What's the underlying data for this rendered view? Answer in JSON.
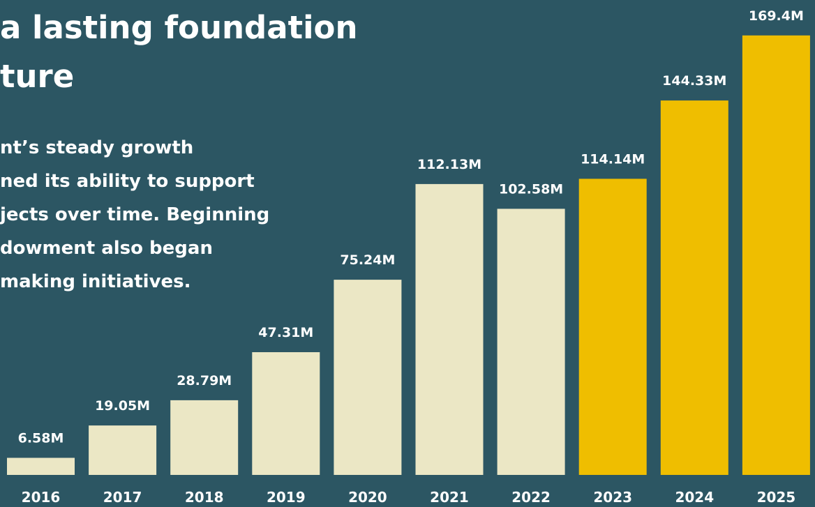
{
  "headline": {
    "lines": [
      "a lasting foundation",
      "ture"
    ]
  },
  "body": {
    "lines": [
      "nt’s steady growth",
      "ned its ability to support",
      "jects over time. Beginning",
      "dowment also began",
      "making initiatives."
    ]
  },
  "colors": {
    "background": "#2c5663",
    "bar_past": "#ebe7c5",
    "bar_recent": "#efbe00",
    "text": "#ffffff"
  },
  "chart_data": {
    "type": "bar",
    "categories": [
      "2016",
      "2017",
      "2018",
      "2019",
      "2020",
      "2021",
      "2022",
      "2023",
      "2024",
      "2025"
    ],
    "values": [
      6.58,
      19.05,
      28.79,
      47.31,
      75.24,
      112.13,
      102.58,
      114.14,
      144.33,
      169.4
    ],
    "value_labels": [
      "6.58M",
      "19.05M",
      "28.79M",
      "47.31M",
      "75.24M",
      "112.13M",
      "102.58M",
      "114.14M",
      "144.33M",
      "169.4M"
    ],
    "highlight_categories": [
      "2023",
      "2024",
      "2025"
    ],
    "title": "",
    "xlabel": "",
    "ylabel": "",
    "ylim": [
      0,
      170
    ],
    "grid": false,
    "legend": "none"
  }
}
